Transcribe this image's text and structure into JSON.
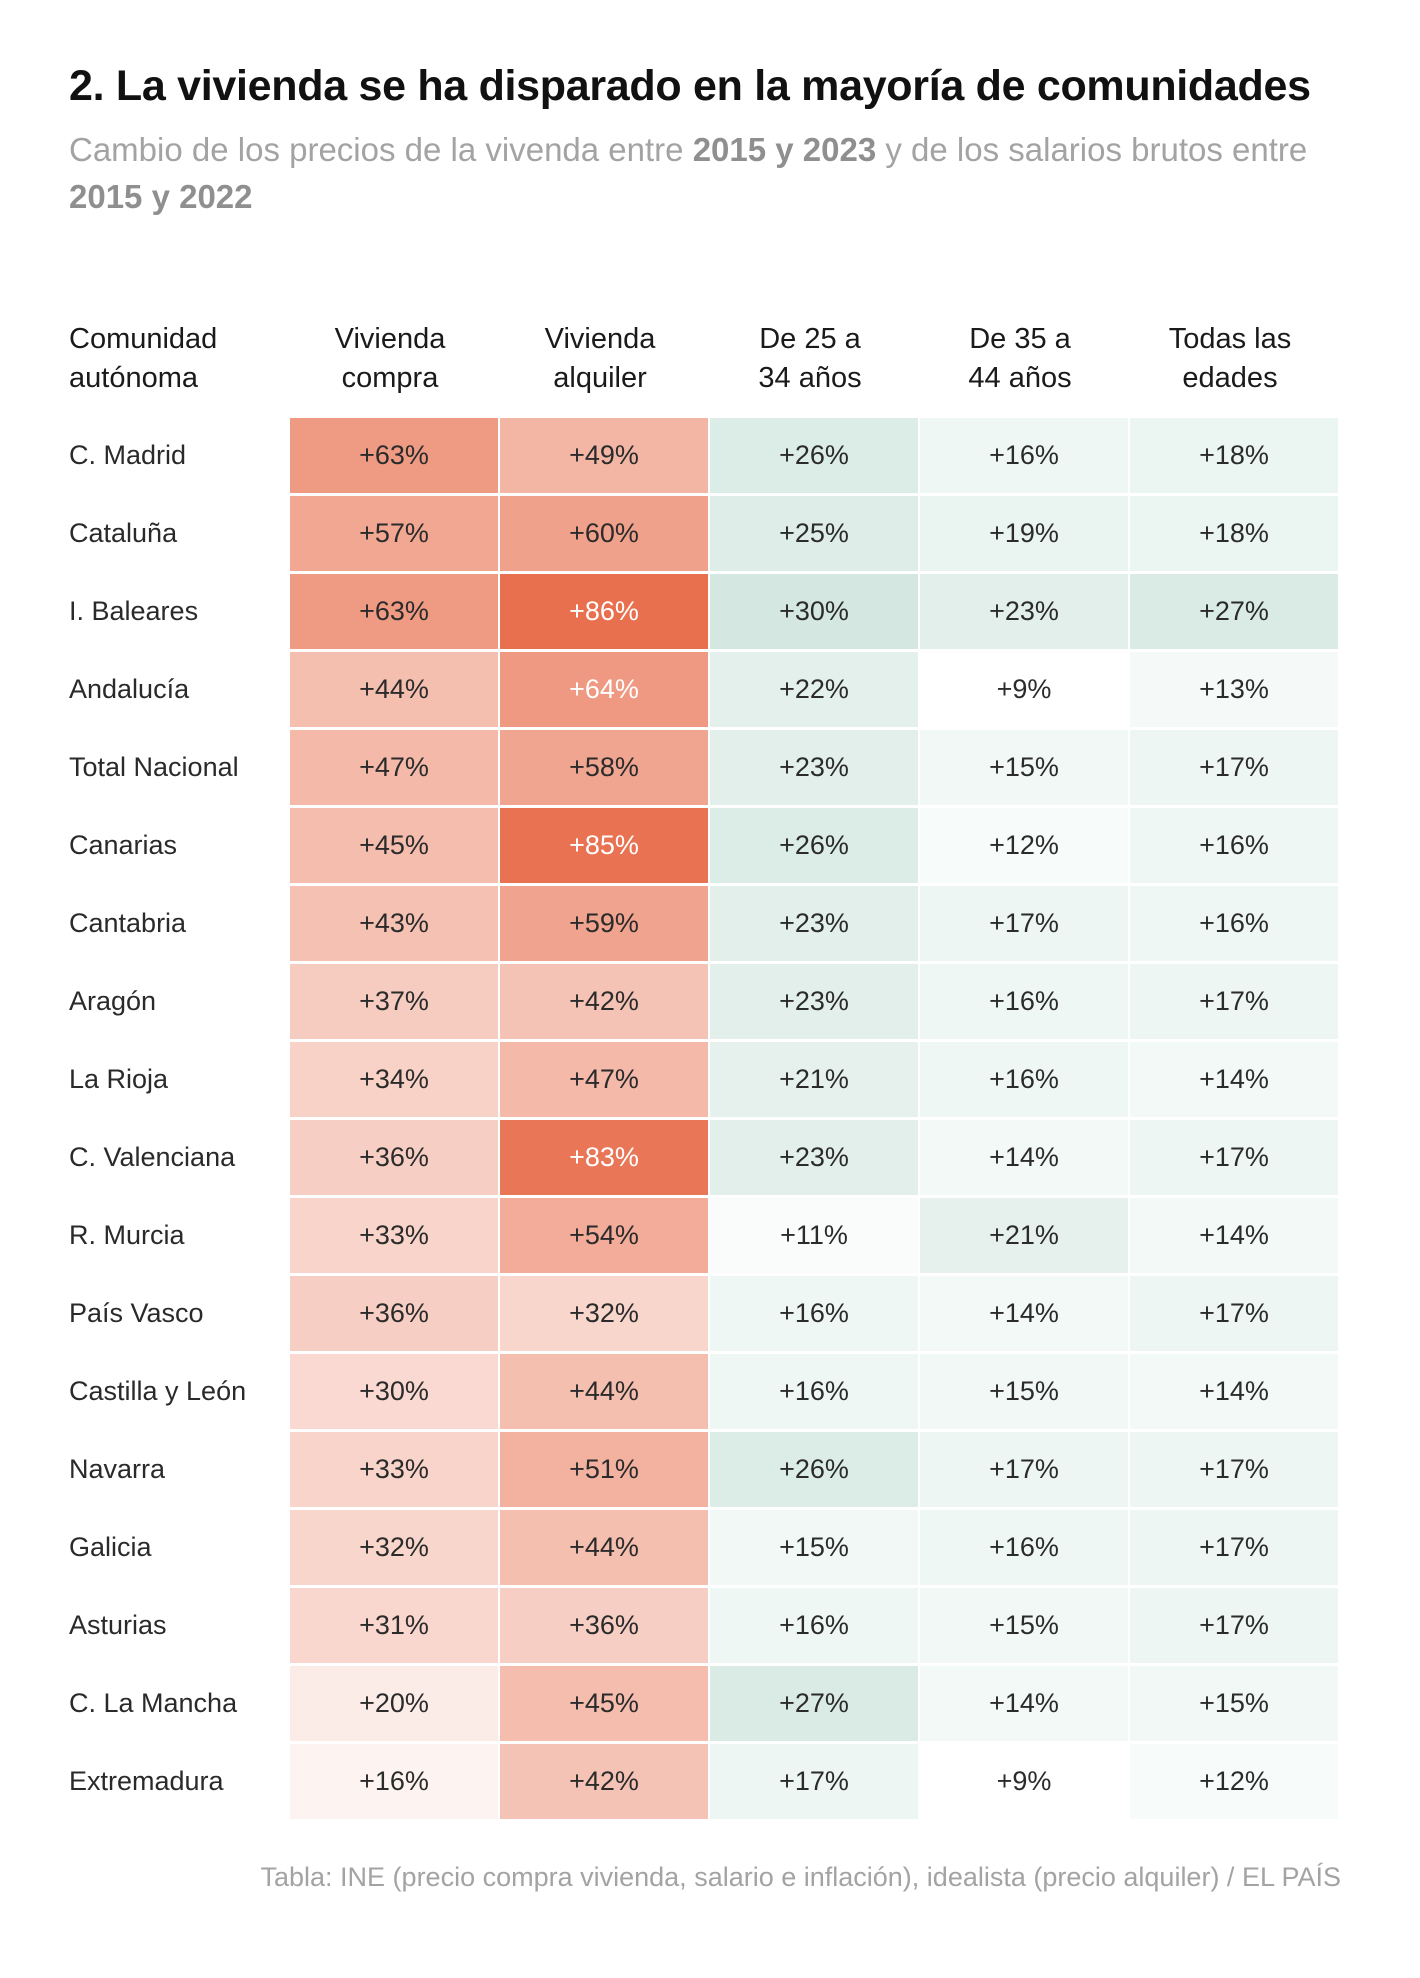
{
  "title": "2. La vivienda se ha disparado en la mayoría de comunidades",
  "subtitle": {
    "part1": "Cambio de los precios de la vivenda entre ",
    "bold1": "2015 y 2023",
    "part2": " y de los salarios brutos entre ",
    "bold2": "2015 y 2022"
  },
  "source": "Tabla: INE (precio compra vivienda, salario e inflación), idealista (precio alquiler) / EL PAÍS",
  "colors": {
    "housing_scale": "#e8704f",
    "wage_scale": "#d4e8e1"
  },
  "chart_data": {
    "type": "table",
    "columns": [
      {
        "line1": "Comunidad",
        "line2": "autónoma"
      },
      {
        "line1": "Vivienda",
        "line2": "compra"
      },
      {
        "line1": "Vivienda",
        "line2": "alquiler"
      },
      {
        "line1": "De 25 a",
        "line2": "34 años"
      },
      {
        "line1": "De 35 a",
        "line2": "44 años"
      },
      {
        "line1": "Todas las",
        "line2": "edades"
      }
    ],
    "rows": [
      {
        "region": "C. Madrid",
        "values": [
          63,
          49,
          26,
          16,
          18
        ]
      },
      {
        "region": "Cataluña",
        "values": [
          57,
          60,
          25,
          19,
          18
        ]
      },
      {
        "region": "I. Baleares",
        "values": [
          63,
          86,
          30,
          23,
          27
        ]
      },
      {
        "region": "Andalucía",
        "values": [
          44,
          64,
          22,
          9,
          13
        ]
      },
      {
        "region": "Total Nacional",
        "values": [
          47,
          58,
          23,
          15,
          17
        ]
      },
      {
        "region": "Canarias",
        "values": [
          45,
          85,
          26,
          12,
          16
        ]
      },
      {
        "region": "Cantabria",
        "values": [
          43,
          59,
          23,
          17,
          16
        ]
      },
      {
        "region": "Aragón",
        "values": [
          37,
          42,
          23,
          16,
          17
        ]
      },
      {
        "region": "La Rioja",
        "values": [
          34,
          47,
          21,
          16,
          14
        ]
      },
      {
        "region": "C. Valenciana",
        "values": [
          36,
          83,
          23,
          14,
          17
        ]
      },
      {
        "region": "R. Murcia",
        "values": [
          33,
          54,
          11,
          21,
          14
        ]
      },
      {
        "region": "País Vasco",
        "values": [
          36,
          32,
          16,
          14,
          17
        ]
      },
      {
        "region": "Castilla y León",
        "values": [
          30,
          44,
          16,
          15,
          14
        ]
      },
      {
        "region": "Navarra",
        "values": [
          33,
          51,
          26,
          17,
          17
        ]
      },
      {
        "region": "Galicia",
        "values": [
          32,
          44,
          15,
          16,
          17
        ]
      },
      {
        "region": "Asturias",
        "values": [
          31,
          36,
          16,
          15,
          17
        ]
      },
      {
        "region": "C. La Mancha",
        "values": [
          20,
          45,
          27,
          14,
          15
        ]
      },
      {
        "region": "Extremadura",
        "values": [
          16,
          42,
          17,
          9,
          12
        ]
      }
    ]
  }
}
